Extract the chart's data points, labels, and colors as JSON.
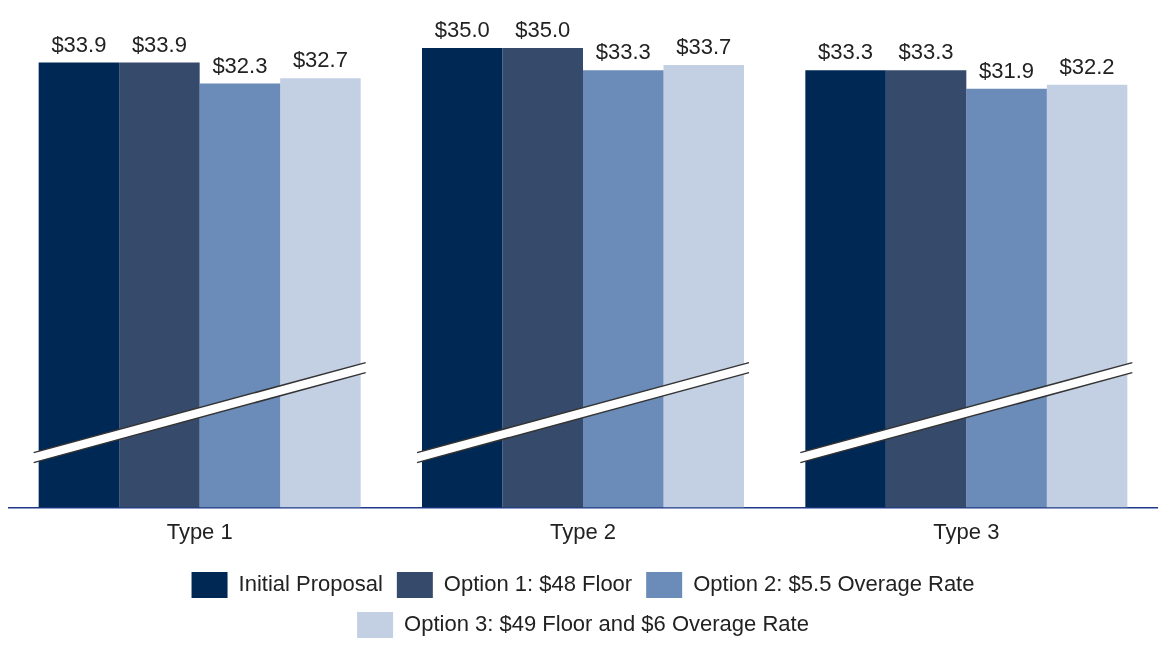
{
  "chart_data": {
    "type": "bar",
    "categories": [
      "Type 1",
      "Type 2",
      "Type 3"
    ],
    "series": [
      {
        "name": "Initial Proposal",
        "color": "#002855",
        "values": [
          33.9,
          35.0,
          33.3
        ],
        "value_labels": [
          "$33.9",
          "$35.0",
          "$33.3"
        ]
      },
      {
        "name": "Option 1: $48 Floor",
        "color": "#364b6b",
        "values": [
          33.9,
          35.0,
          33.3
        ],
        "value_labels": [
          "$33.9",
          "$35.0",
          "$33.3"
        ]
      },
      {
        "name": "Option 2: $5.5 Overage Rate",
        "color": "#6b8cb8",
        "values": [
          32.3,
          33.3,
          31.9
        ],
        "value_labels": [
          "$32.3",
          "$33.3",
          "$31.9"
        ]
      },
      {
        "name": "Option 3: $49 Floor and $6 Overage Rate",
        "color": "#c3cfe2",
        "values": [
          32.7,
          33.7,
          32.2
        ],
        "value_labels": [
          "$32.7",
          "$33.7",
          "$32.2"
        ]
      }
    ],
    "tick_labels": "x",
    "grid": false,
    "legend": "bottom"
  }
}
